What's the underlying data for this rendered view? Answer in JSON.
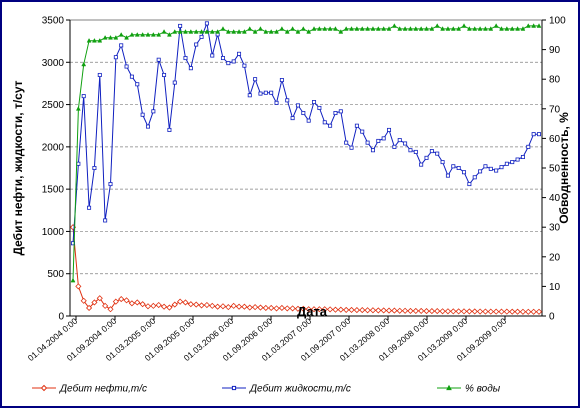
{
  "chart_data": {
    "type": "line",
    "y_left_label": "Дебит нефти, жидкости, т/сут",
    "y_right_label": "Обводненность, %",
    "xlabel": "Дата",
    "ylim_left": [
      0,
      3500
    ],
    "ylim_right": [
      0,
      100
    ],
    "left_ticks": [
      0,
      500,
      1000,
      1500,
      2000,
      2500,
      3000,
      3500
    ],
    "right_ticks": [
      0,
      10,
      20,
      30,
      40,
      50,
      60,
      70,
      80,
      90,
      100
    ],
    "x_ticks": [
      "01.04.2004 0:00",
      "01.09.2004 0:00",
      "01.03.2005 0:00",
      "01.09.2005 0:00",
      "01.03.2006 0:00",
      "01.09.2006 0:00",
      "01.03.2007 0:00",
      "01.09.2007 0:00",
      "01.03.2008 0:00",
      "01.09.2008 0:00",
      "01.03.2009 0:00",
      "01.09.2009 0:00"
    ],
    "grid": "horizontal dashed",
    "legend_position": "bottom",
    "x_start": "2004-04",
    "series": [
      {
        "name": "Дебит нефти,т/с",
        "axis": "left",
        "color": "#e03010",
        "marker": "diamond",
        "values": [
          1050,
          350,
          180,
          95,
          160,
          210,
          120,
          80,
          170,
          200,
          185,
          150,
          160,
          140,
          115,
          120,
          130,
          110,
          100,
          135,
          170,
          160,
          140,
          135,
          125,
          130,
          120,
          110,
          115,
          105,
          120,
          110,
          110,
          100,
          105,
          100,
          95,
          95,
          90,
          95,
          90,
          90,
          85,
          85,
          80,
          80,
          80,
          80,
          78,
          75,
          75,
          72,
          72,
          70,
          70,
          68,
          68,
          66,
          66,
          64,
          64,
          62,
          62,
          60,
          60,
          60,
          58,
          58,
          58,
          56,
          56,
          55,
          55,
          55,
          54,
          54,
          53,
          53,
          52,
          52,
          52,
          52,
          51,
          51,
          50,
          50,
          50,
          50
        ]
      },
      {
        "name": "Дебит жидкости,т/с",
        "axis": "left",
        "color": "#1020c0",
        "marker": "square",
        "values": [
          860,
          1800,
          2600,
          1280,
          1750,
          2850,
          1130,
          1560,
          3060,
          3200,
          2950,
          2830,
          2740,
          2380,
          2240,
          2420,
          3030,
          2850,
          2200,
          2760,
          3430,
          3050,
          2930,
          3210,
          3300,
          3460,
          3080,
          3330,
          3050,
          2990,
          3010,
          3100,
          2960,
          2610,
          2800,
          2630,
          2640,
          2640,
          2520,
          2790,
          2550,
          2340,
          2490,
          2400,
          2310,
          2530,
          2460,
          2290,
          2250,
          2400,
          2420,
          2050,
          1990,
          2250,
          2180,
          2050,
          1960,
          2070,
          2100,
          2200,
          2000,
          2080,
          2040,
          1960,
          1940,
          1790,
          1870,
          1950,
          1920,
          1820,
          1660,
          1770,
          1750,
          1700,
          1560,
          1640,
          1710,
          1770,
          1740,
          1720,
          1760,
          1800,
          1820,
          1850,
          1880,
          2000,
          2150,
          2150
        ]
      },
      {
        "name": "% воды",
        "axis": "right",
        "color": "#10a010",
        "marker": "triangle",
        "values": [
          12,
          70,
          85,
          93,
          93,
          93,
          94,
          94,
          94,
          95,
          94,
          95,
          95,
          95,
          95,
          95,
          95,
          96,
          95,
          96,
          96,
          96,
          96,
          96,
          96,
          96,
          96,
          96,
          97,
          96,
          96,
          96,
          96,
          97,
          96,
          97,
          96,
          96,
          96,
          97,
          96,
          97,
          96,
          97,
          96,
          97,
          97,
          97,
          97,
          97,
          96,
          97,
          97,
          97,
          97,
          97,
          97,
          97,
          97,
          97,
          98,
          97,
          97,
          97,
          97,
          97,
          97,
          97,
          98,
          97,
          97,
          97,
          97,
          98,
          97,
          97,
          97,
          97,
          97,
          98,
          97,
          97,
          97,
          97,
          97,
          98,
          98,
          98
        ]
      }
    ]
  }
}
